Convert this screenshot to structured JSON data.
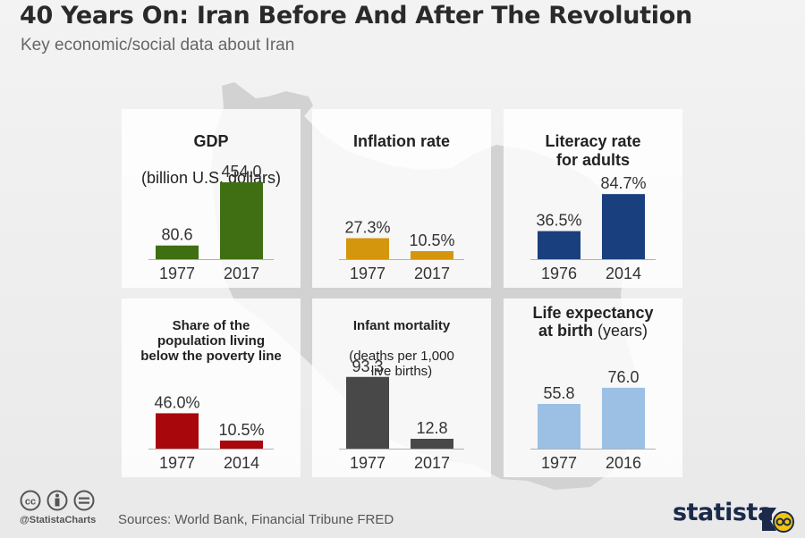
{
  "header": {
    "title": "40 Years On: Iran Before And After The Revolution",
    "subtitle": "Key economic/social data about Iran"
  },
  "footer": {
    "handle": "@StatistaCharts",
    "source": "Sources: World Bank, Financial Tribune FRED",
    "brand": "statista",
    "icons": [
      "cc-icon",
      "by-icon",
      "nd-icon"
    ]
  },
  "chart_data": [
    {
      "type": "bar",
      "title": "GDP",
      "subtitle": "(billion U.S. dollars)",
      "categories": [
        "1977",
        "2017"
      ],
      "values": [
        80.6,
        454.0
      ],
      "labels": [
        "80.6",
        "454.0"
      ],
      "color": "#3f6f12",
      "ylim": [
        0,
        454.0
      ]
    },
    {
      "type": "bar",
      "title": "Inflation rate",
      "subtitle": "",
      "categories": [
        "1977",
        "2017"
      ],
      "values": [
        27.3,
        10.5
      ],
      "labels": [
        "27.3%",
        "10.5%"
      ],
      "color": "#d4960c",
      "ylim": [
        0,
        100
      ]
    },
    {
      "type": "bar",
      "title": "Literacy rate\nfor adults",
      "subtitle": "",
      "categories": [
        "1976",
        "2014"
      ],
      "values": [
        36.5,
        84.7
      ],
      "labels": [
        "36.5%",
        "84.7%"
      ],
      "color": "#1a3f7e",
      "ylim": [
        0,
        100
      ]
    },
    {
      "type": "bar",
      "title": "Share of the\npopulation living\nbelow the poverty line",
      "subtitle": "",
      "categories": [
        "1977",
        "2014"
      ],
      "values": [
        46.0,
        10.5
      ],
      "labels": [
        "46.0%",
        "10.5%"
      ],
      "color": "#a8080c",
      "ylim": [
        0,
        100
      ]
    },
    {
      "type": "bar",
      "title": "Infant mortality",
      "subtitle": "(deaths per 1,000\nlive births)",
      "categories": [
        "1977",
        "2017"
      ],
      "values": [
        93.3,
        12.8
      ],
      "labels": [
        "93.3",
        "12.8"
      ],
      "color": "#484848",
      "ylim": [
        0,
        100
      ]
    },
    {
      "type": "bar",
      "title": "Life expectancy\nat birth",
      "subtitle": "(years)",
      "categories": [
        "1977",
        "2016"
      ],
      "values": [
        55.8,
        76.0
      ],
      "labels": [
        "55.8",
        "76.0"
      ],
      "color": "#9cc0e3",
      "ylim": [
        0,
        96
      ]
    }
  ]
}
